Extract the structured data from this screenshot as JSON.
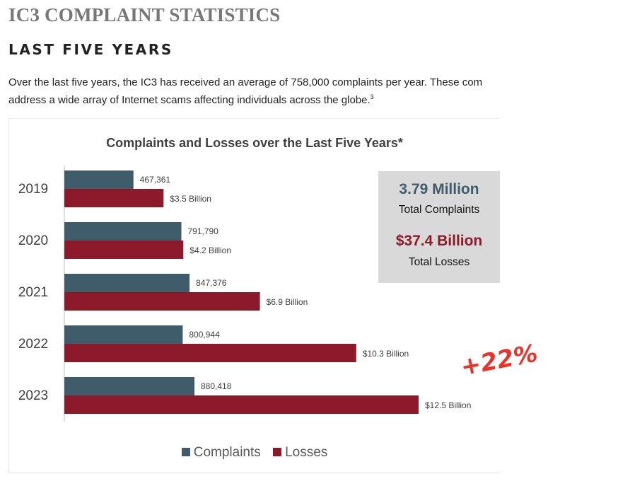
{
  "page": {
    "title": "IC3 COMPLAINT STATISTICS",
    "subtitle": "LAST FIVE YEARS",
    "intro_line1": "Over the last five years, the IC3 has received an average of 758,000 complaints per year. These com",
    "intro_line2": "address a wide array of Internet scams affecting individuals across the globe.",
    "intro_footnote": "3"
  },
  "summary": {
    "complaints_value": "3.79 Million",
    "complaints_label": "Total Complaints",
    "losses_value": "$37.4 Billion",
    "losses_label": "Total Losses"
  },
  "annotation": {
    "text": "+22%"
  },
  "colors": {
    "complaints": "#3e5c6a",
    "losses": "#8c1a2a",
    "annotation": "#e8352c"
  },
  "chart_data": {
    "type": "bar",
    "orientation": "horizontal",
    "title": "Complaints and Losses over the Last Five Years*",
    "categories": [
      "2019",
      "2020",
      "2021",
      "2022",
      "2023"
    ],
    "series": [
      {
        "name": "Complaints",
        "values": [
          467361,
          791790,
          847376,
          800944,
          880418
        ],
        "labels": [
          "467,361",
          "791,790",
          "847,376",
          "800,944",
          "880,418"
        ]
      },
      {
        "name": "Losses",
        "unit": "Billion USD",
        "values": [
          3.5,
          4.2,
          6.9,
          10.3,
          12.5
        ],
        "labels": [
          "$3.5 Billion",
          "$4.2 Billion",
          "$6.9 Billion",
          "$10.3 Billion",
          "$12.5 Billion"
        ]
      }
    ],
    "legend": [
      "Complaints",
      "Losses"
    ],
    "legend_position": "bottom",
    "grid": false
  }
}
